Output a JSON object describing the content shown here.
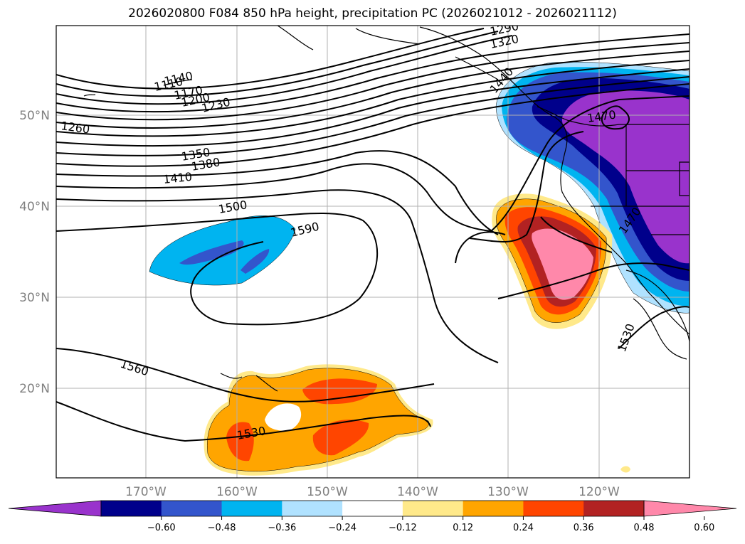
{
  "title": "2026020800 F084 850 hPa height, precipitation PC (2026021012 - 2026021112)",
  "map": {
    "lat_labels": [
      "50°N",
      "40°N",
      "30°N",
      "20°N"
    ],
    "lon_labels": [
      "170°W",
      "160°W",
      "150°W",
      "140°W",
      "130°W",
      "120°W"
    ],
    "contour_labels": [
      "1110",
      "1140",
      "1170",
      "1200",
      "1230",
      "1260",
      "1290",
      "1320",
      "1350",
      "1380",
      "1410",
      "1440",
      "1470",
      "1470",
      "1500",
      "1590",
      "1560",
      "1530",
      "1530"
    ]
  },
  "colorbar": {
    "ticks": [
      "−0.60",
      "−0.48",
      "−0.36",
      "−0.24",
      "−0.12",
      "0.12",
      "0.24",
      "0.36",
      "0.48",
      "0.60"
    ],
    "colors": [
      "#9933cc",
      "#00008b",
      "#3355cc",
      "#00b4f0",
      "#b0e2ff",
      "#ffffff",
      "#ffe98a",
      "#ffa500",
      "#ff4500",
      "#b22222",
      "#ff88aa"
    ]
  }
}
